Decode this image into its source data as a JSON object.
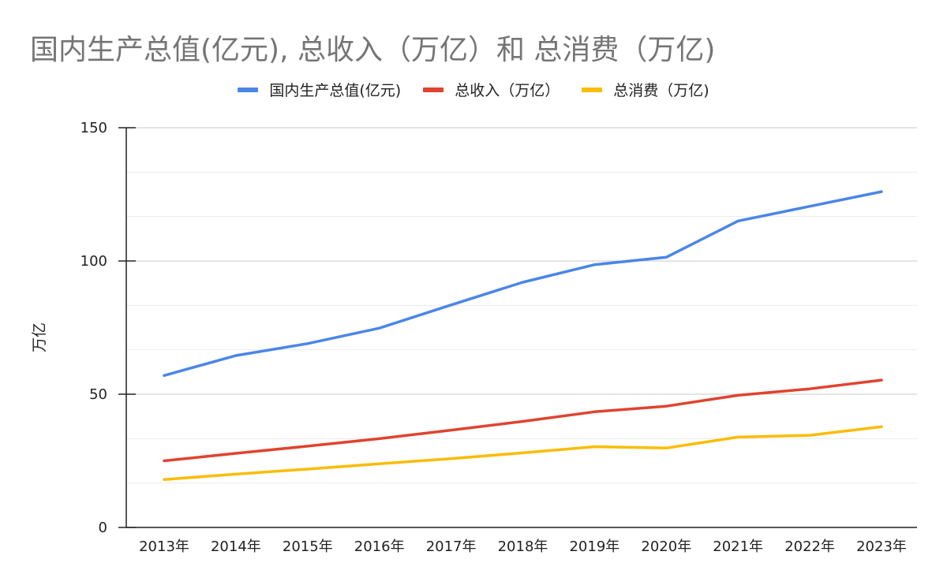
{
  "chart_data": {
    "type": "line",
    "title": "国内生产总值(亿元), 总收入（万亿）和 总消费（万亿)",
    "xlabel": "",
    "ylabel": "万亿",
    "ylim": [
      0,
      150
    ],
    "yticks": [
      0,
      50,
      100,
      150
    ],
    "grid": true,
    "legend_position": "top-center",
    "categories": [
      "2013年",
      "2014年",
      "2015年",
      "2016年",
      "2017年",
      "2018年",
      "2019年",
      "2020年",
      "2021年",
      "2022年",
      "2023年"
    ],
    "series": [
      {
        "name": "国内生产总值(亿元)",
        "color": "#4a86e8",
        "values": [
          57,
          64.5,
          69,
          74.8,
          83.5,
          92,
          98.6,
          101.4,
          115,
          120.5,
          126
        ]
      },
      {
        "name": "总收入（万亿）",
        "color": "#e0432f",
        "values": [
          25,
          27.8,
          30.5,
          33.3,
          36.5,
          39.8,
          43.4,
          45.5,
          49.6,
          52,
          55.3
        ]
      },
      {
        "name": "总消费（万亿)",
        "color": "#fbbc04",
        "values": [
          18,
          20,
          21.9,
          23.9,
          25.8,
          28,
          30.3,
          29.8,
          33.9,
          34.6,
          37.8
        ]
      }
    ]
  }
}
